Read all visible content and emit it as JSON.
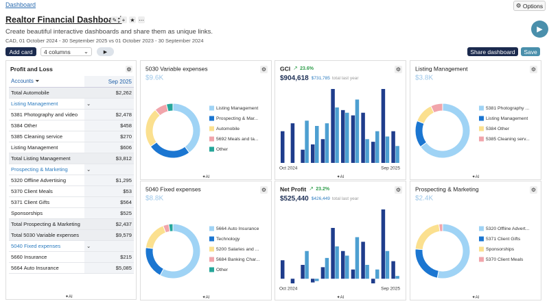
{
  "breadcrumb": "Dashboard",
  "options": "Options",
  "title": "Realtor Financial Dashboard",
  "subtitle": "Create beautiful interactive dashboards and share them as unique links.",
  "date_range": "CAD, 01 October 2024 - 30 September 2025 vs 01 October 2023 - 30 September 2024",
  "toolbar": {
    "add_card": "Add card",
    "columns": "4 columns",
    "share": "Share dashboard",
    "save": "Save"
  },
  "ai": "AI",
  "profit_loss": {
    "title": "Profit and Loss",
    "header": [
      "Accounts",
      "Sep 2025"
    ],
    "rows": [
      {
        "label": "Total Automobile",
        "value": "$2,262",
        "style": "total"
      },
      {
        "label": "Listing Management",
        "style": "group"
      },
      {
        "label": "5381 Photography and video",
        "value": "$2,478",
        "style": "item"
      },
      {
        "label": "5384 Other",
        "value": "$458",
        "style": "item"
      },
      {
        "label": "5385 Cleaning service",
        "value": "$270",
        "style": "item"
      },
      {
        "label": "Listing Management",
        "value": "$606",
        "style": "item"
      },
      {
        "label": "Total Listing Management",
        "value": "$3,812",
        "style": "total"
      },
      {
        "label": "Prospecting & Marketing",
        "style": "group"
      },
      {
        "label": "5320 Offline Advertising",
        "value": "$1,295",
        "style": "item"
      },
      {
        "label": "5370 Client Meals",
        "value": "$53",
        "style": "item"
      },
      {
        "label": "5371 Client Gifts",
        "value": "$564",
        "style": "item"
      },
      {
        "label": "Sponsorships",
        "value": "$525",
        "style": "item"
      },
      {
        "label": "Total Prospecting & Marketing",
        "value": "$2,437",
        "style": "total"
      },
      {
        "label": "Total 5030 Variable expenses",
        "value": "$9,579",
        "style": "total"
      },
      {
        "label": "5040 Fixed expenses",
        "style": "group"
      },
      {
        "label": "5660 Insurance",
        "value": "$215",
        "style": "item"
      },
      {
        "label": "5664 Auto Insurance",
        "value": "$5,085",
        "style": "item"
      }
    ]
  },
  "cards": [
    {
      "title": "5030 Variable expenses",
      "total": "$9.6K",
      "chart_data": {
        "type": "donut",
        "categories": [
          "Listing Management",
          "Prospecting & Mar...",
          "Automobile",
          "5692 Meals and ta...",
          "Other"
        ],
        "values": [
          3812,
          2437,
          2262,
          700,
          368
        ],
        "colors": [
          "#9fd3f5",
          "#1b76d1",
          "#fbe08f",
          "#f1a5ab",
          "#26a69a"
        ]
      }
    },
    {
      "title": "GCI",
      "change": "23.6%",
      "total": "$904,618",
      "previous_total": "$731,785",
      "previous_label": "total last year",
      "chart_data": {
        "type": "bar",
        "categories": [
          "Oct 2024",
          null,
          null,
          null,
          null,
          null,
          null,
          null,
          null,
          null,
          null,
          "Sep 2025"
        ],
        "series": [
          {
            "color": "#1f3d8c",
            "values": [
              60000,
              75000,
              25000,
              35000,
              45000,
              140000,
              100000,
              90000,
              95000,
              40000,
              140000,
              60000
            ]
          },
          {
            "color": "#4d9fd1",
            "values": [
              null,
              null,
              80000,
              70000,
              75000,
              105000,
              95000,
              120000,
              45000,
              60000,
              50000,
              32000
            ]
          }
        ]
      }
    },
    {
      "title": "Listing Management",
      "total": "$3.8K",
      "chart_data": {
        "type": "donut",
        "categories": [
          "5381 Photography ...",
          "Listing Management",
          "5384 Other",
          "5385 Cleaning serv..."
        ],
        "values": [
          2478,
          606,
          458,
          270
        ],
        "colors": [
          "#9fd3f5",
          "#1b76d1",
          "#fbe08f",
          "#f1a5ab"
        ]
      }
    },
    {
      "title": "5040 Fixed expenses",
      "total": "$8.8K",
      "chart_data": {
        "type": "donut",
        "categories": [
          "5664 Auto Insurance",
          "Technology",
          "5200 Salaries and ...",
          "5684 Banking Char...",
          "Other"
        ],
        "values": [
          5085,
          1700,
          1500,
          300,
          215
        ],
        "colors": [
          "#9fd3f5",
          "#1b76d1",
          "#fbe08f",
          "#f1a5ab",
          "#26a69a"
        ]
      }
    },
    {
      "title": "Net Profit",
      "change": "23.2%",
      "total": "$525,440",
      "previous_total": "$426,449",
      "previous_label": "total last year",
      "chart_data": {
        "type": "bar",
        "categories": [
          "Oct 2024",
          null,
          null,
          null,
          null,
          null,
          null,
          null,
          null,
          null,
          null,
          "Sep 2025"
        ],
        "series": [
          {
            "color": "#1f3d8c",
            "values": [
              40000,
              -10000,
              30000,
              -8000,
              25000,
              110000,
              60000,
              20000,
              80000,
              -10000,
              150000,
              38000
            ]
          },
          {
            "color": "#4d9fd1",
            "values": [
              null,
              null,
              60000,
              -5000,
              45000,
              70000,
              50000,
              90000,
              30000,
              20000,
              60000,
              6000
            ]
          }
        ]
      }
    },
    {
      "title": "Prospecting & Marketing",
      "total": "$2.4K",
      "chart_data": {
        "type": "donut",
        "categories": [
          "5320 Offline Advert...",
          "5371 Client Gifts",
          "Sponsorships",
          "5370 Client Meals"
        ],
        "values": [
          1295,
          564,
          525,
          53
        ],
        "colors": [
          "#9fd3f5",
          "#1b76d1",
          "#fbe08f",
          "#f1a5ab"
        ]
      }
    }
  ]
}
